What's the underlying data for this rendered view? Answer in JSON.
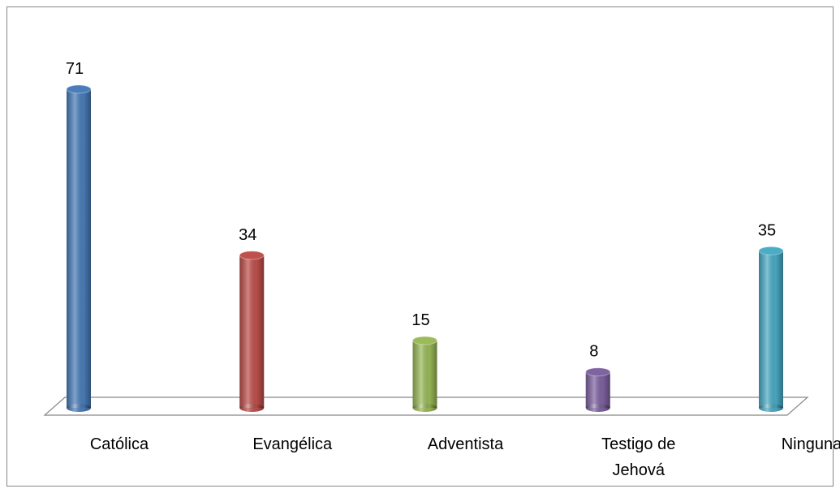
{
  "chart_data": {
    "type": "bar",
    "style": "3d-cylinder",
    "categories": [
      "Católica",
      "Evangélica",
      "Adventista",
      "Testigo de Jehová",
      "Ninguna"
    ],
    "values": [
      71,
      34,
      15,
      8,
      35
    ],
    "colors": [
      "#4a7ebb",
      "#c0504d",
      "#9bbb59",
      "#8064a2",
      "#4bacc6"
    ],
    "data_labels": true
  }
}
